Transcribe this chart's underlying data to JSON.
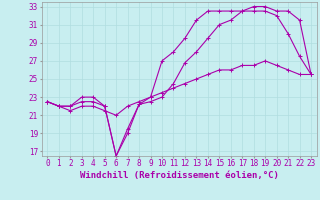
{
  "xlabel": "Windchill (Refroidissement éolien,°C)",
  "background_color": "#c8eef0",
  "grid_color": "#b0dde0",
  "line_color": "#aa00aa",
  "x": [
    0,
    1,
    2,
    3,
    4,
    5,
    6,
    7,
    8,
    9,
    10,
    11,
    12,
    13,
    14,
    15,
    16,
    17,
    18,
    19,
    20,
    21,
    22,
    23
  ],
  "line1": [
    22.5,
    22.0,
    22.0,
    22.5,
    22.5,
    22.0,
    16.5,
    19.5,
    22.2,
    22.5,
    23.0,
    24.5,
    26.8,
    28.0,
    29.5,
    31.0,
    31.5,
    32.5,
    32.5,
    32.5,
    32.0,
    30.0,
    27.5,
    25.5
  ],
  "line2": [
    22.5,
    22.0,
    22.0,
    23.0,
    23.0,
    22.0,
    16.5,
    19.0,
    22.2,
    23.0,
    27.0,
    28.0,
    29.5,
    31.5,
    32.5,
    32.5,
    32.5,
    32.5,
    33.0,
    33.0,
    32.5,
    32.5,
    31.5,
    25.5
  ],
  "line3": [
    22.5,
    22.0,
    21.5,
    22.0,
    22.0,
    21.5,
    21.0,
    22.0,
    22.5,
    23.0,
    23.5,
    24.0,
    24.5,
    25.0,
    25.5,
    26.0,
    26.0,
    26.5,
    26.5,
    27.0,
    26.5,
    26.0,
    25.5,
    25.5
  ],
  "ylim": [
    16.5,
    33.5
  ],
  "yticks": [
    17,
    19,
    21,
    23,
    25,
    27,
    29,
    31,
    33
  ],
  "xticks": [
    0,
    1,
    2,
    3,
    4,
    5,
    6,
    7,
    8,
    9,
    10,
    11,
    12,
    13,
    14,
    15,
    16,
    17,
    18,
    19,
    20,
    21,
    22,
    23
  ],
  "tick_fontsize": 5.5,
  "xlabel_fontsize": 6.5
}
